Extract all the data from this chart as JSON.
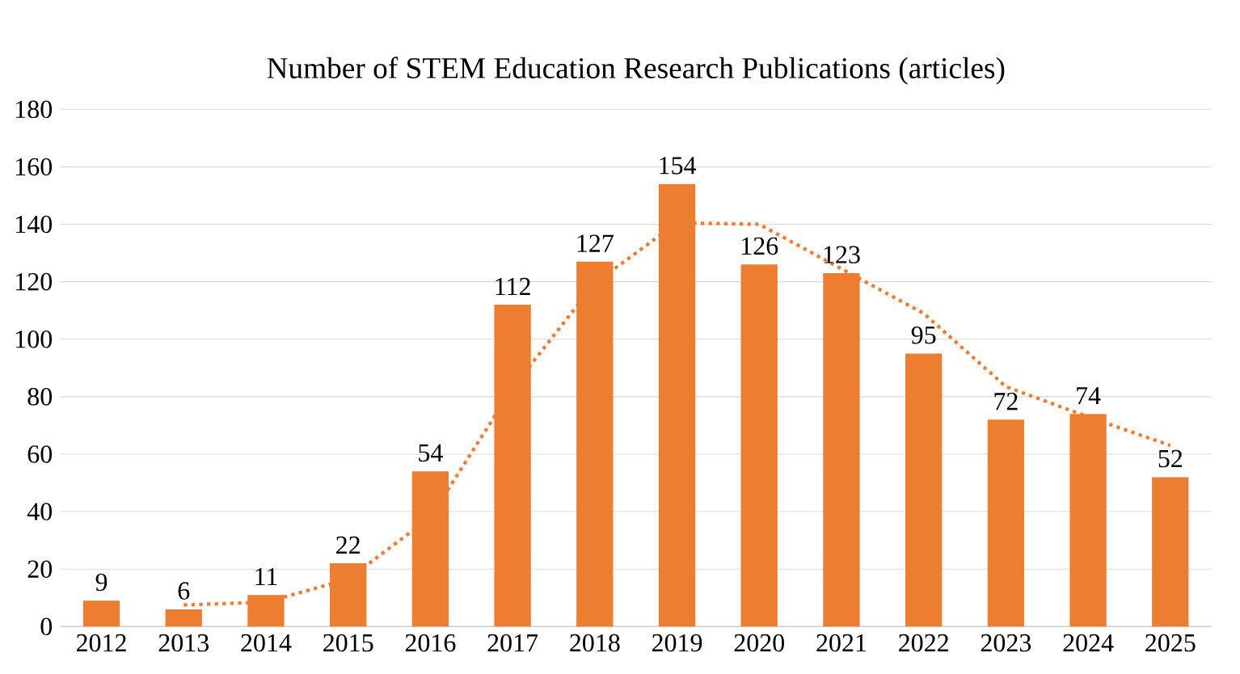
{
  "chart_data": {
    "type": "bar",
    "title": "Number of STEM Education Research Publications (articles)",
    "categories": [
      "2012",
      "2013",
      "2014",
      "2015",
      "2016",
      "2017",
      "2018",
      "2019",
      "2020",
      "2021",
      "2022",
      "2023",
      "2024",
      "2025"
    ],
    "series": [
      {
        "color": "#ed7d31",
        "values": [
          9,
          6,
          11,
          22,
          54,
          112,
          127,
          154,
          126,
          123,
          95,
          72,
          74,
          52
        ],
        "value_labels": [
          "9",
          "6",
          "11",
          "22",
          "54",
          "112",
          "127",
          "154",
          "126",
          "123",
          "95",
          "72",
          "74",
          "52"
        ]
      },
      {
        "type": "line",
        "color": "#ed7d31",
        "line_style": "dotted",
        "values": [
          null,
          7.5,
          8.5,
          16.5,
          38,
          83,
          119.5,
          140.5,
          140,
          124.5,
          109,
          83.5,
          73,
          63
        ]
      }
    ],
    "ylim": [
      0,
      180
    ],
    "yticks": [
      0,
      20,
      40,
      60,
      80,
      100,
      120,
      140,
      160,
      180
    ],
    "grid": "y"
  }
}
